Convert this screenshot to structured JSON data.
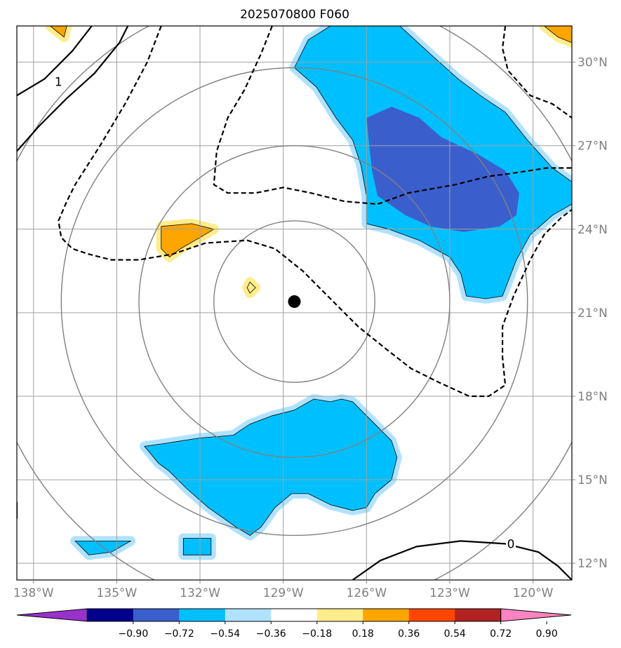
{
  "chart_data": {
    "type": "contour_map",
    "title": "2025070800 F060",
    "x_ticks": [
      "138°W",
      "135°W",
      "132°W",
      "129°W",
      "126°W",
      "123°W",
      "120°W"
    ],
    "y_ticks": [
      "30°N",
      "27°N",
      "24°N",
      "21°N",
      "18°N",
      "15°N",
      "12°N"
    ],
    "xlim": [
      -138.6,
      -118.6
    ],
    "ylim": [
      11.4,
      31.3
    ],
    "x_tick_values": [
      -138,
      -135,
      -132,
      -129,
      -126,
      -123,
      -120
    ],
    "y_tick_values": [
      30,
      27,
      24,
      21,
      18,
      15,
      12
    ],
    "grid": true,
    "center_marker": {
      "lon": -128.6,
      "lat": 21.4
    },
    "range_rings": [
      {
        "center_lon": -128.6,
        "center_lat": 21.4,
        "radius_deg": 2.9
      },
      {
        "center_lon": -128.6,
        "center_lat": 21.4,
        "radius_deg": 5.6
      },
      {
        "center_lon": -128.6,
        "center_lat": 21.4,
        "radius_deg": 8.4
      },
      {
        "center_lon": -128.6,
        "center_lat": 21.4,
        "radius_deg": 11.2
      }
    ],
    "colorbar": {
      "boundaries": [
        -0.9,
        -0.72,
        -0.54,
        -0.36,
        -0.18,
        0.18,
        0.36,
        0.54,
        0.72,
        0.9
      ],
      "labels": [
        "−0.90",
        "−0.72",
        "−0.54",
        "−0.36",
        "−0.18",
        "0.18",
        "0.36",
        "0.54",
        "0.72",
        "0.90"
      ],
      "colors": [
        "#9932cc",
        "#00008b",
        "#3a5fcd",
        "#00bfff",
        "#b0e2ff",
        "#ffffff",
        "#ffec8b",
        "#ffa500",
        "#ff4500",
        "#b22222",
        "#ff83c0"
      ],
      "extend": "both"
    },
    "contour_labels": [
      {
        "text": "1",
        "lon": -137.1,
        "lat": 29.3
      },
      {
        "text": "0",
        "lon": -120.8,
        "lat": 12.7
      }
    ],
    "shaded_regions": [
      {
        "level": -0.36,
        "color": "#00bfff",
        "points": [
          [
            -128.1,
            30.8
          ],
          [
            -127.3,
            31.3
          ],
          [
            -124.8,
            31.3
          ],
          [
            -123.6,
            30.2
          ],
          [
            -122.7,
            29.4
          ],
          [
            -121.9,
            28.8
          ],
          [
            -121,
            28.2
          ],
          [
            -120.2,
            27.2
          ],
          [
            -119.3,
            26.2
          ],
          [
            -118.6,
            25.7
          ],
          [
            -118.6,
            24.9
          ],
          [
            -119.3,
            24.5
          ],
          [
            -120.1,
            23.8
          ],
          [
            -120.6,
            22.9
          ],
          [
            -121.1,
            21.6
          ],
          [
            -121.7,
            21.5
          ],
          [
            -122.4,
            21.6
          ],
          [
            -122.6,
            22.4
          ],
          [
            -123,
            23
          ],
          [
            -124.1,
            23.6
          ],
          [
            -125.2,
            24
          ],
          [
            -126,
            24.2
          ],
          [
            -126,
            25.2
          ],
          [
            -126.2,
            26.3
          ],
          [
            -126.5,
            27.2
          ],
          [
            -127.1,
            28
          ],
          [
            -127.8,
            29.1
          ],
          [
            -128.6,
            29.8
          ],
          [
            -128.1,
            30.8
          ]
        ]
      },
      {
        "level": -0.54,
        "color": "#3a5fcd",
        "points": [
          [
            -126,
            28
          ],
          [
            -125.1,
            28.4
          ],
          [
            -124.1,
            28
          ],
          [
            -123.3,
            27.3
          ],
          [
            -122,
            26.7
          ],
          [
            -121,
            26.1
          ],
          [
            -120.5,
            25.3
          ],
          [
            -120.6,
            24.5
          ],
          [
            -121.2,
            24.1
          ],
          [
            -122.5,
            23.9
          ],
          [
            -123.7,
            24.1
          ],
          [
            -124.6,
            24.5
          ],
          [
            -125.6,
            25.2
          ],
          [
            -125.8,
            26.1
          ],
          [
            -125.9,
            27
          ],
          [
            -126,
            28
          ]
        ]
      },
      {
        "level": -0.36,
        "color": "#00bfff",
        "points": [
          [
            -134,
            16.2
          ],
          [
            -133.3,
            16.3
          ],
          [
            -132,
            16.5
          ],
          [
            -130.8,
            16.6
          ],
          [
            -130.2,
            17
          ],
          [
            -129.4,
            17.3
          ],
          [
            -128.6,
            17.5
          ],
          [
            -127.9,
            17.9
          ],
          [
            -127.3,
            17.8
          ],
          [
            -126.9,
            17.9
          ],
          [
            -126.5,
            17.8
          ],
          [
            -125.8,
            17.1
          ],
          [
            -125.1,
            16.4
          ],
          [
            -124.9,
            15.8
          ],
          [
            -125.1,
            15
          ],
          [
            -125.7,
            14.5
          ],
          [
            -126,
            14
          ],
          [
            -126.5,
            13.9
          ],
          [
            -127.3,
            14.1
          ],
          [
            -128.1,
            14.5
          ],
          [
            -128.7,
            14.5
          ],
          [
            -129.3,
            14
          ],
          [
            -129.8,
            13.3
          ],
          [
            -130.2,
            13
          ],
          [
            -130.7,
            13.3
          ],
          [
            -131.7,
            14
          ],
          [
            -132.5,
            14.7
          ],
          [
            -133.1,
            15.3
          ],
          [
            -133.5,
            15.6
          ],
          [
            -134,
            16.2
          ]
        ]
      },
      {
        "level": -0.36,
        "color": "#00bfff",
        "points": [
          [
            -136.5,
            12.8
          ],
          [
            -135.8,
            12.8
          ],
          [
            -134.8,
            12.8
          ],
          [
            -134.5,
            12.8
          ],
          [
            -135.2,
            12.4
          ],
          [
            -136,
            12.3
          ],
          [
            -136.5,
            12.8
          ]
        ]
      },
      {
        "level": -0.36,
        "color": "#00bfff",
        "points": [
          [
            -132.6,
            12.9
          ],
          [
            -131.6,
            12.9
          ],
          [
            -131.6,
            12.3
          ],
          [
            -132.6,
            12.3
          ],
          [
            -132.6,
            12.9
          ]
        ]
      },
      {
        "level": 0.36,
        "color": "#ffa500",
        "points": [
          [
            -133.4,
            24.1
          ],
          [
            -132.3,
            24.2
          ],
          [
            -131.5,
            24
          ],
          [
            -132,
            23.7
          ],
          [
            -132.7,
            23.3
          ],
          [
            -133.1,
            23
          ],
          [
            -133.4,
            23.3
          ],
          [
            -133.4,
            24.1
          ]
        ]
      },
      {
        "level": 0.36,
        "color": "#ffa500",
        "points": [
          [
            -137.4,
            31.3
          ],
          [
            -136.8,
            31.3
          ],
          [
            -136.9,
            30.9
          ],
          [
            -137.4,
            31.3
          ]
        ]
      },
      {
        "level": 0.36,
        "color": "#ffa500",
        "points": [
          [
            -119.6,
            31.3
          ],
          [
            -118.6,
            31.3
          ],
          [
            -118.6,
            30.7
          ],
          [
            -119.1,
            30.9
          ],
          [
            -119.6,
            31.3
          ]
        ]
      },
      {
        "level": 0.18,
        "color": "#ffec8b",
        "points": [
          [
            -130.3,
            21.9
          ],
          [
            -130.2,
            22.1
          ],
          [
            -130,
            21.9
          ],
          [
            -130.2,
            21.7
          ],
          [
            -130.3,
            21.9
          ]
        ]
      }
    ],
    "negative_contours": [
      [
        [
          -129.4,
          31.3
        ],
        [
          -129.8,
          30.3
        ],
        [
          -130.4,
          29
        ],
        [
          -131,
          28
        ],
        [
          -131.4,
          26.8
        ],
        [
          -131.5,
          25.6
        ],
        [
          -131,
          25.3
        ],
        [
          -130,
          25.3
        ],
        [
          -129,
          25.5
        ],
        [
          -128,
          25.3
        ],
        [
          -126.8,
          25
        ],
        [
          -125.6,
          24.9
        ],
        [
          -124.5,
          25.3
        ],
        [
          -122.8,
          25.6
        ],
        [
          -121.6,
          25.9
        ],
        [
          -120.8,
          26
        ],
        [
          -119.5,
          26.2
        ],
        [
          -118.6,
          26.2
        ]
      ],
      [
        [
          -133.4,
          31.3
        ],
        [
          -133.9,
          30
        ],
        [
          -134.7,
          28.5
        ],
        [
          -135.6,
          27
        ],
        [
          -136.5,
          25.6
        ],
        [
          -136.8,
          25
        ],
        [
          -137.1,
          24.3
        ],
        [
          -137,
          23.7
        ],
        [
          -136.6,
          23.3
        ],
        [
          -136,
          23.1
        ],
        [
          -135.2,
          22.9
        ],
        [
          -134.2,
          22.9
        ],
        [
          -133,
          23.1
        ],
        [
          -131.8,
          23.5
        ],
        [
          -130.3,
          23.6
        ],
        [
          -129.3,
          23.3
        ],
        [
          -128.3,
          22.5
        ],
        [
          -127.3,
          21.5
        ],
        [
          -126.3,
          20.5
        ],
        [
          -125.3,
          19.7
        ],
        [
          -124.4,
          19
        ],
        [
          -123.4,
          18.5
        ],
        [
          -122.3,
          18
        ],
        [
          -121.6,
          18
        ],
        [
          -121,
          18.4
        ],
        [
          -121.1,
          19.4
        ],
        [
          -121.1,
          20.5
        ],
        [
          -120.7,
          21.6
        ],
        [
          -120.1,
          22.9
        ],
        [
          -119.6,
          23.8
        ],
        [
          -119,
          24.4
        ],
        [
          -118.6,
          24.7
        ]
      ],
      [
        [
          -121,
          31.3
        ],
        [
          -121.1,
          30.5
        ],
        [
          -120.9,
          29.7
        ],
        [
          -120.1,
          28.8
        ],
        [
          -119.3,
          28.5
        ],
        [
          -118.6,
          28
        ]
      ]
    ],
    "positive_contours": [
      [
        [
          -138.6,
          26.8
        ],
        [
          -137.8,
          27.7
        ],
        [
          -136.8,
          28.7
        ],
        [
          -135.8,
          29.6
        ],
        [
          -134.9,
          30.7
        ],
        [
          -134.6,
          31.3
        ]
      ],
      [
        [
          -138.6,
          28.8
        ],
        [
          -137.6,
          29.4
        ],
        [
          -136.6,
          30.4
        ],
        [
          -135.9,
          31.3
        ]
      ],
      [
        [
          -138.6,
          14.2
        ],
        [
          -138.6,
          13.6
        ]
      ],
      [
        [
          -126.5,
          11.4
        ],
        [
          -125.5,
          12.1
        ],
        [
          -124.2,
          12.6
        ],
        [
          -122.6,
          12.8
        ],
        [
          -121,
          12.7
        ],
        [
          -119.8,
          12.4
        ],
        [
          -119.1,
          11.9
        ],
        [
          -118.6,
          11.4
        ]
      ]
    ]
  }
}
